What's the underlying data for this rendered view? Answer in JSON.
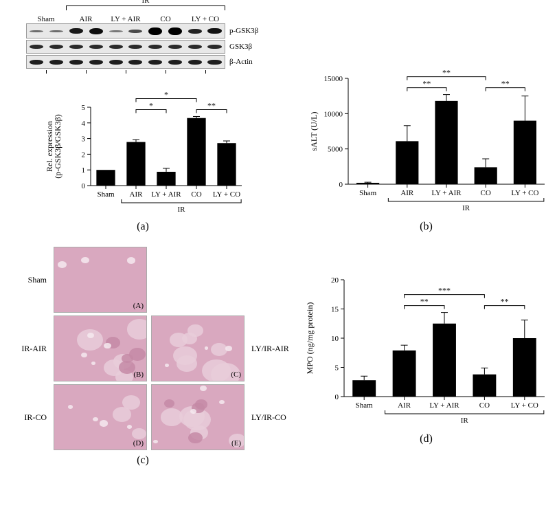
{
  "panelLabels": {
    "a": "(a)",
    "b": "(b)",
    "c": "(c)",
    "d": "(d)"
  },
  "western": {
    "irLabel": "IR",
    "groups": [
      "Sham",
      "AIR",
      "LY + AIR",
      "CO",
      "LY + CO"
    ],
    "rows": [
      {
        "label": "p-GSK3β",
        "type": "phospho",
        "bands": [
          {
            "h": 3,
            "c": "#6b6b6b"
          },
          {
            "h": 3,
            "c": "#6b6b6b"
          },
          {
            "h": 8,
            "c": "#1a1a1a"
          },
          {
            "h": 9,
            "c": "#0d0d0d"
          },
          {
            "h": 3,
            "c": "#777"
          },
          {
            "h": 5,
            "c": "#4a4a4a"
          },
          {
            "h": 11,
            "c": "#000"
          },
          {
            "h": 11,
            "c": "#000"
          },
          {
            "h": 7,
            "c": "#222"
          },
          {
            "h": 8,
            "c": "#111"
          }
        ]
      },
      {
        "label": "GSK3β",
        "type": "total",
        "bands": [
          {
            "h": 6,
            "c": "#2a2a2a"
          },
          {
            "h": 6,
            "c": "#2a2a2a"
          },
          {
            "h": 6,
            "c": "#2a2a2a"
          },
          {
            "h": 6,
            "c": "#2a2a2a"
          },
          {
            "h": 6,
            "c": "#2a2a2a"
          },
          {
            "h": 6,
            "c": "#2a2a2a"
          },
          {
            "h": 6,
            "c": "#2a2a2a"
          },
          {
            "h": 6,
            "c": "#2a2a2a"
          },
          {
            "h": 6,
            "c": "#2a2a2a"
          },
          {
            "h": 6,
            "c": "#2a2a2a"
          }
        ]
      },
      {
        "label": "β-Actin",
        "type": "loading",
        "bands": [
          {
            "h": 7,
            "c": "#1e1e1e"
          },
          {
            "h": 7,
            "c": "#1e1e1e"
          },
          {
            "h": 7,
            "c": "#1e1e1e"
          },
          {
            "h": 7,
            "c": "#1e1e1e"
          },
          {
            "h": 7,
            "c": "#1e1e1e"
          },
          {
            "h": 7,
            "c": "#1e1e1e"
          },
          {
            "h": 7,
            "c": "#1e1e1e"
          },
          {
            "h": 7,
            "c": "#1e1e1e"
          },
          {
            "h": 7,
            "c": "#1e1e1e"
          },
          {
            "h": 7,
            "c": "#1e1e1e"
          }
        ]
      }
    ]
  },
  "chartA": {
    "type": "bar",
    "ylabel_line1": "Rel. expression",
    "ylabel_line2": "(p-GSK3β/GSK3β)",
    "irLabel": "IR",
    "categories": [
      "Sham",
      "AIR",
      "LY + AIR",
      "CO",
      "LY + CO"
    ],
    "values": [
      1.0,
      2.78,
      0.88,
      4.31,
      2.71
    ],
    "errors": [
      0,
      0.15,
      0.22,
      0.1,
      0.14
    ],
    "ylim": [
      0,
      5
    ],
    "ytick_step": 1,
    "bar_color": "#000000",
    "bar_width": 0.62,
    "label_fontsize": 11,
    "significance": [
      {
        "from": 1,
        "to": 2,
        "label": "*",
        "level": 0
      },
      {
        "from": 1,
        "to": 3,
        "label": "*",
        "level": 1
      },
      {
        "from": 3,
        "to": 4,
        "label": "**",
        "level": 0
      }
    ]
  },
  "chartB": {
    "type": "bar",
    "ylabel": "sALT (U/L)",
    "irLabel": "IR",
    "categories": [
      "Sham",
      "AIR",
      "LY + AIR",
      "CO",
      "LY + CO"
    ],
    "values": [
      200,
      6100,
      11800,
      2400,
      9000
    ],
    "errors": [
      80,
      2200,
      900,
      1200,
      3500
    ],
    "ylim": [
      0,
      15000
    ],
    "ytick_step": 5000,
    "bar_color": "#000000",
    "bar_width": 0.58,
    "label_fontsize": 11,
    "significance": [
      {
        "from": 1,
        "to": 2,
        "label": "**",
        "level": 0
      },
      {
        "from": 1,
        "to": 3,
        "label": "**",
        "level": 1
      },
      {
        "from": 3,
        "to": 4,
        "label": "**",
        "level": 0
      }
    ]
  },
  "chartD": {
    "type": "bar",
    "ylabel": "MPO (ng/mg protein)",
    "irLabel": "IR",
    "categories": [
      "Sham",
      "AIR",
      "LY + AIR",
      "CO",
      "LY + CO"
    ],
    "values": [
      2.8,
      7.9,
      12.5,
      3.8,
      10.0
    ],
    "errors": [
      0.7,
      0.9,
      1.9,
      1.1,
      3.1
    ],
    "ylim": [
      0,
      20
    ],
    "ytick_step": 5,
    "bar_color": "#000000",
    "bar_width": 0.58,
    "label_fontsize": 11,
    "significance": [
      {
        "from": 1,
        "to": 2,
        "label": "**",
        "level": 0
      },
      {
        "from": 1,
        "to": 3,
        "label": "***",
        "level": 1
      },
      {
        "from": 3,
        "to": 4,
        "label": "**",
        "level": 0
      }
    ]
  },
  "histology": {
    "tile_bg": "#d9a8bf",
    "light_patch": "#e8cdd9",
    "dark_patch": "#c48aa6",
    "vessel": "#f5e9ef",
    "panels": [
      {
        "sub": "(A)",
        "left": "Sham",
        "right": "",
        "style": "clean"
      },
      {
        "sub": "(B)",
        "left": "IR-AIR",
        "right": "",
        "style": "necrotic"
      },
      {
        "sub": "(C)",
        "left": "",
        "right": "LY/IR-AIR",
        "style": "severe"
      },
      {
        "sub": "(D)",
        "left": "IR-CO",
        "right": "",
        "style": "mild"
      },
      {
        "sub": "(E)",
        "left": "",
        "right": "LY/IR-CO",
        "style": "necrotic"
      }
    ]
  }
}
